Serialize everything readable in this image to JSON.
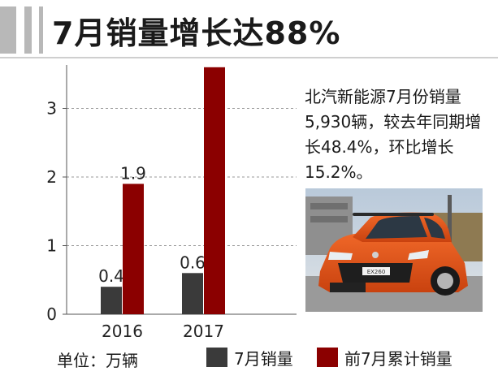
{
  "header": {
    "title": "7月销量增长达88%"
  },
  "note": {
    "text": "北汽新能源7月份销量5,930辆，较去年同期增长48.4%，环比增长15.2%。"
  },
  "footer": {
    "unit": "单位：万辆"
  },
  "photo": {
    "badge": "EX260"
  },
  "chart_data": {
    "type": "bar",
    "categories": [
      "2016",
      "2017"
    ],
    "series": [
      {
        "name": "7月销量",
        "values": [
          0.4,
          0.6
        ],
        "color": "#3a3a3a"
      },
      {
        "name": "前7月累计销量",
        "values": [
          1.9,
          3.6
        ],
        "color": "#8b0000"
      }
    ],
    "data_labels": [
      [
        "0.4",
        "0.6"
      ],
      [
        "1.9",
        "3.6"
      ]
    ],
    "yticks": [
      0,
      1,
      2,
      3
    ],
    "ylim": [
      0,
      3.6
    ],
    "grid": true,
    "legend": "bottom"
  }
}
